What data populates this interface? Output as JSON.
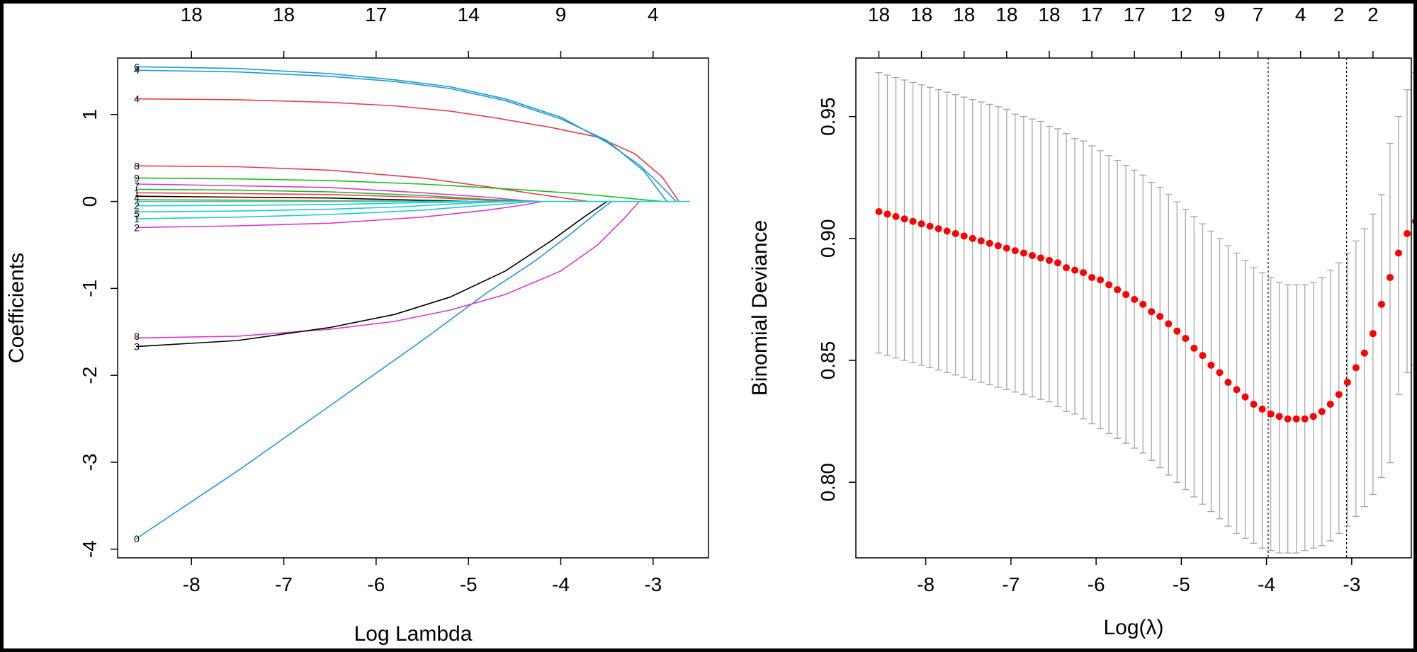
{
  "chart_data": [
    {
      "type": "line",
      "xlabel": "Log Lambda",
      "ylabel": "Coefficients",
      "xlim": [
        -8.8,
        -2.4
      ],
      "ylim": [
        -4.1,
        1.65
      ],
      "x_ticks": [
        -8,
        -7,
        -6,
        -5,
        -4,
        -3
      ],
      "x_tick_labels": [
        "-8",
        "-7",
        "-6",
        "-5",
        "-4",
        "-3"
      ],
      "y_ticks": [
        -4,
        -3,
        -2,
        -1,
        0,
        1
      ],
      "y_tick_labels": [
        "-4",
        "-3",
        "-2",
        "-1",
        "0",
        "1"
      ],
      "top_ticks": [
        -8,
        -7,
        -6,
        -5,
        -4,
        -3
      ],
      "top_tick_labels": [
        "18",
        "18",
        "17",
        "14",
        "9",
        "4"
      ],
      "series": [
        {
          "color": "#1f9ad6",
          "x": [
            -8.6,
            -7.5,
            -6.5,
            -5.5,
            -4.8,
            -4.3,
            -3.9,
            -3.6,
            -3.45
          ],
          "values": [
            -3.88,
            -3.1,
            -2.35,
            -1.6,
            -1.05,
            -0.7,
            -0.38,
            -0.12,
            0
          ]
        },
        {
          "color": "#e8404a",
          "x": [
            -8.6,
            -7.5,
            -6.5,
            -5.8,
            -5.2,
            -4.7,
            -4.1,
            -3.6,
            -3.2,
            -2.9,
            -2.72
          ],
          "values": [
            1.18,
            1.17,
            1.14,
            1.1,
            1.04,
            0.96,
            0.85,
            0.74,
            0.55,
            0.28,
            0
          ]
        },
        {
          "color": "#1f9ad6",
          "x": [
            -8.6,
            -7.5,
            -6.5,
            -5.8,
            -5.2,
            -4.6,
            -4.0,
            -3.5,
            -3.1,
            -2.85
          ],
          "values": [
            1.51,
            1.49,
            1.44,
            1.38,
            1.3,
            1.16,
            0.95,
            0.7,
            0.35,
            0
          ]
        },
        {
          "color": "#1f9ad6",
          "x": [
            -8.6,
            -7.5,
            -6.5,
            -5.8,
            -5.2,
            -4.6,
            -4.0,
            -3.5,
            -3.15,
            -2.95,
            -2.75
          ],
          "values": [
            1.55,
            1.53,
            1.47,
            1.4,
            1.32,
            1.18,
            0.97,
            0.68,
            0.42,
            0.22,
            0
          ]
        },
        {
          "color": "#d63ad6",
          "x": [
            -8.6,
            -7.5,
            -6.5,
            -5.8,
            -5.2,
            -4.6,
            -4.0,
            -3.6,
            -3.3,
            -3.15
          ],
          "values": [
            -1.57,
            -1.55,
            -1.47,
            -1.38,
            -1.25,
            -1.07,
            -0.8,
            -0.5,
            -0.18,
            0
          ]
        },
        {
          "color": "#000000",
          "x": [
            -8.6,
            -7.5,
            -6.5,
            -5.8,
            -5.2,
            -4.6,
            -4.1,
            -3.75,
            -3.5
          ],
          "values": [
            -1.67,
            -1.6,
            -1.45,
            -1.3,
            -1.1,
            -0.8,
            -0.45,
            -0.18,
            0
          ]
        },
        {
          "color": "#e8404a",
          "x": [
            -8.6,
            -7.5,
            -6.5,
            -5.5,
            -4.8,
            -4.3,
            -3.9,
            -3.7
          ],
          "values": [
            0.41,
            0.4,
            0.36,
            0.27,
            0.17,
            0.09,
            0.03,
            0
          ]
        },
        {
          "color": "#22bb22",
          "x": [
            -8.6,
            -7.5,
            -6.5,
            -5.5,
            -4.5,
            -3.8,
            -3.3,
            -2.9
          ],
          "values": [
            0.27,
            0.26,
            0.24,
            0.2,
            0.14,
            0.09,
            0.04,
            0
          ]
        },
        {
          "color": "#d63ad6",
          "x": [
            -8.6,
            -7.5,
            -6.5,
            -5.5,
            -4.8,
            -4.4,
            -4.2
          ],
          "values": [
            0.2,
            0.18,
            0.16,
            0.1,
            0.05,
            0.01,
            0
          ]
        },
        {
          "color": "#22bb22",
          "x": [
            -8.6,
            -7.5,
            -6.5,
            -5.5,
            -4.9,
            -4.5,
            -4.3
          ],
          "values": [
            0.14,
            0.13,
            0.11,
            0.07,
            0.03,
            0.01,
            0
          ]
        },
        {
          "color": "#e8404a",
          "x": [
            -8.6,
            -7.5,
            -6.5,
            -5.5,
            -4.9,
            -4.6,
            -4.4
          ],
          "values": [
            0.1,
            0.09,
            0.08,
            0.05,
            0.02,
            0.005,
            0
          ]
        },
        {
          "color": "#000000",
          "x": [
            -8.6,
            -7.5,
            -6.5,
            -5.8,
            -5.3,
            -5.0
          ],
          "values": [
            0.06,
            0.05,
            0.04,
            0.02,
            0.01,
            0
          ]
        },
        {
          "color": "#bb8800",
          "x": [
            -8.6,
            -7.5,
            -6.5,
            -5.8,
            -5.4
          ],
          "values": [
            0.02,
            0.015,
            0.01,
            0.005,
            0
          ]
        },
        {
          "color": "#1fcccc",
          "x": [
            -8.6,
            -7.5,
            -6.5,
            -5.8,
            -5.3,
            -5.0,
            -4.8
          ],
          "values": [
            -0.05,
            -0.045,
            -0.035,
            -0.02,
            -0.01,
            -0.003,
            0
          ]
        },
        {
          "color": "#1fcccc",
          "x": [
            -8.6,
            -7.5,
            -6.5,
            -5.7,
            -5.2,
            -4.8,
            -4.5
          ],
          "values": [
            -0.12,
            -0.11,
            -0.09,
            -0.06,
            -0.03,
            -0.01,
            0
          ]
        },
        {
          "color": "#1fcccc",
          "x": [
            -8.6,
            -7.5,
            -6.5,
            -5.5,
            -4.9,
            -4.5,
            -4.3
          ],
          "values": [
            -0.2,
            -0.18,
            -0.15,
            -0.1,
            -0.05,
            -0.02,
            0
          ]
        },
        {
          "color": "#d63ad6",
          "x": [
            -8.6,
            -7.5,
            -6.5,
            -5.5,
            -4.8,
            -4.4,
            -4.2
          ],
          "values": [
            -0.3,
            -0.28,
            -0.25,
            -0.18,
            -0.1,
            -0.04,
            0
          ]
        },
        {
          "color": "#1fcccc",
          "x": [
            -8.6,
            -2.6
          ],
          "values": [
            0,
            0
          ]
        }
      ],
      "curve_labels": [
        {
          "x": -8.6,
          "y": 1.55,
          "text": "6"
        },
        {
          "x": -8.6,
          "y": 1.51,
          "text": "4"
        },
        {
          "x": -8.6,
          "y": 1.18,
          "text": "4"
        },
        {
          "x": -8.6,
          "y": 0.41,
          "text": "8"
        },
        {
          "x": -8.6,
          "y": 0.27,
          "text": "9"
        },
        {
          "x": -8.6,
          "y": 0.18,
          "text": "7"
        },
        {
          "x": -8.6,
          "y": 0.1,
          "text": "1"
        },
        {
          "x": -8.6,
          "y": 0.04,
          "text": "4"
        },
        {
          "x": -8.6,
          "y": -0.05,
          "text": "2"
        },
        {
          "x": -8.6,
          "y": -0.14,
          "text": "5"
        },
        {
          "x": -8.6,
          "y": -0.2,
          "text": "1"
        },
        {
          "x": -8.6,
          "y": -0.3,
          "text": "2"
        },
        {
          "x": -8.6,
          "y": -1.55,
          "text": "8"
        },
        {
          "x": -8.6,
          "y": -1.67,
          "text": "3"
        },
        {
          "x": -8.6,
          "y": -3.88,
          "text": "0"
        }
      ]
    },
    {
      "type": "scatter",
      "xlabel": "Log(λ)",
      "ylabel": "Binomial Deviance",
      "xlim": [
        -8.82,
        -2.3
      ],
      "ylim": [
        0.769,
        0.974
      ],
      "x_ticks": [
        -8,
        -7,
        -6,
        -5,
        -4,
        -3
      ],
      "x_tick_labels": [
        "-8",
        "-7",
        "-6",
        "-5",
        "-4",
        "-3"
      ],
      "y_ticks": [
        0.8,
        0.85,
        0.9,
        0.95
      ],
      "y_tick_labels": [
        "0.80",
        "0.85",
        "0.90",
        "0.95"
      ],
      "top_ticks": [
        -8.55,
        -8.05,
        -7.55,
        -7.05,
        -6.55,
        -6.05,
        -5.55,
        -5.0,
        -4.55,
        -4.1,
        -3.6,
        -3.15,
        -2.75
      ],
      "top_tick_labels": [
        "18",
        "18",
        "18",
        "18",
        "18",
        "17",
        "17",
        "12",
        "9",
        "7",
        "4",
        "2",
        "2"
      ],
      "vlines": [
        -3.98,
        -3.06
      ],
      "point_color": "#ff0000",
      "errorbar_color": "#a6a6a6",
      "x_start": -8.55,
      "x_step": 0.1,
      "values": [
        0.911,
        0.91,
        0.909,
        0.908,
        0.907,
        0.906,
        0.905,
        0.904,
        0.903,
        0.902,
        0.901,
        0.9,
        0.899,
        0.898,
        0.897,
        0.896,
        0.895,
        0.894,
        0.893,
        0.892,
        0.891,
        0.89,
        0.888,
        0.887,
        0.886,
        0.884,
        0.883,
        0.881,
        0.879,
        0.877,
        0.875,
        0.873,
        0.87,
        0.868,
        0.865,
        0.862,
        0.859,
        0.855,
        0.852,
        0.848,
        0.845,
        0.841,
        0.838,
        0.835,
        0.832,
        0.83,
        0.828,
        0.827,
        0.826,
        0.826,
        0.826,
        0.827,
        0.829,
        0.832,
        0.836,
        0.841,
        0.847,
        0.853,
        0.861,
        0.873,
        0.884,
        0.894,
        0.902,
        0.907,
        0.911
      ],
      "upper": [
        0.968,
        0.967,
        0.966,
        0.965,
        0.964,
        0.963,
        0.962,
        0.961,
        0.96,
        0.959,
        0.958,
        0.957,
        0.956,
        0.955,
        0.954,
        0.953,
        0.951,
        0.95,
        0.949,
        0.948,
        0.946,
        0.945,
        0.943,
        0.941,
        0.94,
        0.938,
        0.936,
        0.934,
        0.932,
        0.93,
        0.928,
        0.926,
        0.923,
        0.921,
        0.918,
        0.915,
        0.912,
        0.909,
        0.906,
        0.903,
        0.9,
        0.897,
        0.894,
        0.891,
        0.888,
        0.886,
        0.884,
        0.882,
        0.881,
        0.881,
        0.881,
        0.882,
        0.884,
        0.887,
        0.89,
        0.894,
        0.899,
        0.904,
        0.91,
        0.918,
        0.939,
        0.95,
        0.961,
        0.968,
        0.972
      ],
      "lower": [
        0.853,
        0.852,
        0.851,
        0.85,
        0.849,
        0.848,
        0.847,
        0.846,
        0.845,
        0.844,
        0.843,
        0.842,
        0.841,
        0.84,
        0.839,
        0.838,
        0.837,
        0.836,
        0.835,
        0.834,
        0.833,
        0.831,
        0.829,
        0.828,
        0.826,
        0.824,
        0.822,
        0.82,
        0.818,
        0.816,
        0.814,
        0.812,
        0.809,
        0.806,
        0.803,
        0.8,
        0.797,
        0.794,
        0.791,
        0.788,
        0.785,
        0.782,
        0.779,
        0.777,
        0.775,
        0.773,
        0.772,
        0.771,
        0.771,
        0.771,
        0.772,
        0.773,
        0.774,
        0.776,
        0.779,
        0.782,
        0.786,
        0.79,
        0.795,
        0.802,
        0.808,
        0.836,
        0.845,
        0.848,
        0.851
      ]
    }
  ]
}
